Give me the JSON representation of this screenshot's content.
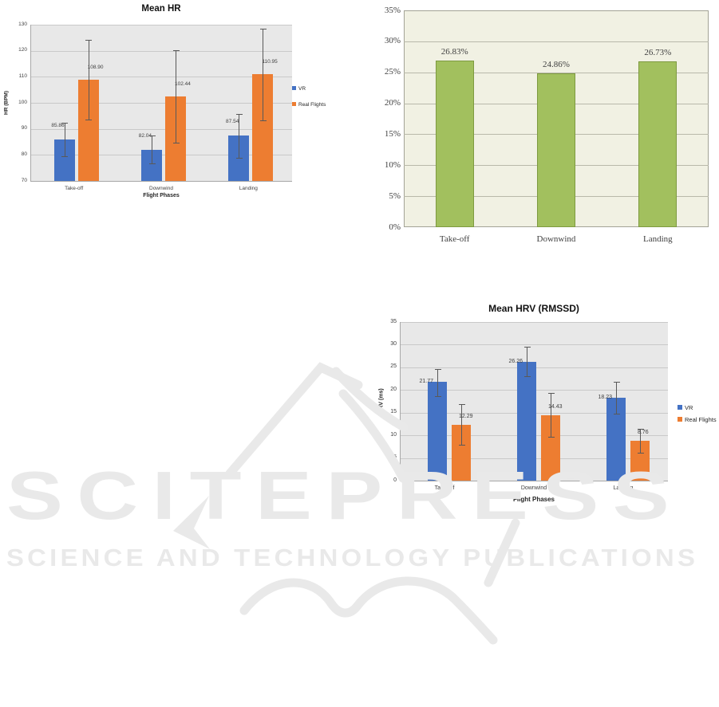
{
  "watermark": {
    "line1": "SCITEPRESS",
    "line2": "SCIENCE AND TECHNOLOGY PUBLICATIONS",
    "color": "#e9e9e9"
  },
  "colors": {
    "vr_blue": "#4472c4",
    "real_flights_orange": "#ed7d31",
    "green_bar": "#a2c05e",
    "green_bar_border": "#7e9a40",
    "plot_gray": "#e8e8e8",
    "plot_cream": "#f1f1e3",
    "error_bar": "#595959"
  },
  "chart_data": [
    {
      "id": "mean-hr",
      "type": "bar",
      "title": "Mean HR",
      "xlabel": "Flight Phases",
      "ylabel": "HR (BPM)",
      "categories": [
        "Take-off",
        "Downwind",
        "Landing"
      ],
      "series": [
        {
          "name": "VR",
          "color": "#4472c4",
          "values": [
            85.86,
            82.04,
            87.54
          ],
          "err_low": [
            79.5,
            76.7,
            79.0
          ],
          "err_high": [
            92.3,
            87.5,
            95.7
          ]
        },
        {
          "name": "Real Flights",
          "color": "#ed7d31",
          "values": [
            108.9,
            102.44,
            110.95
          ],
          "err_low": [
            93.5,
            84.7,
            93.4
          ],
          "err_high": [
            124.3,
            120.3,
            128.6
          ]
        }
      ],
      "ylim": [
        70,
        130
      ],
      "ytick_labels": [
        "70",
        "80",
        "90",
        "100",
        "110",
        "120",
        "130"
      ],
      "grid": true,
      "legend_position": "right",
      "value_format": "0.00"
    },
    {
      "id": "stress-percentage",
      "type": "bar",
      "title": "",
      "xlabel": "",
      "ylabel": "",
      "categories": [
        "Take-off",
        "Downwind",
        "Landing"
      ],
      "series": [
        {
          "name": "",
          "color": "#a2c05e",
          "border": "#7e9a40",
          "values": [
            26.83,
            24.86,
            26.73
          ]
        }
      ],
      "ylim": [
        0,
        35
      ],
      "ytick_labels": [
        "0%",
        "5%",
        "10%",
        "15%",
        "20%",
        "25%",
        "30%",
        "35%"
      ],
      "grid": true,
      "legend_position": "none",
      "value_format": "0.00%"
    },
    {
      "id": "mean-hrv",
      "type": "bar",
      "title": "Mean HRV (RMSSD)",
      "xlabel": "Flight Phases",
      "ylabel": "HRV (ms)",
      "categories": [
        "Take-off",
        "Downwind",
        "Landing"
      ],
      "series": [
        {
          "name": "VR",
          "color": "#4472c4",
          "values": [
            21.77,
            26.26,
            18.23
          ],
          "err_low": [
            18.7,
            23.1,
            14.7
          ],
          "err_high": [
            24.7,
            29.5,
            21.8
          ]
        },
        {
          "name": "Real Flights",
          "color": "#ed7d31",
          "values": [
            12.29,
            14.43,
            8.76
          ],
          "err_low": [
            7.9,
            9.7,
            6.2
          ],
          "err_high": [
            16.8,
            19.4,
            11.4
          ]
        }
      ],
      "ylim": [
        0,
        35
      ],
      "ytick_labels": [
        "0",
        "5",
        "10",
        "15",
        "20",
        "25",
        "30",
        "35"
      ],
      "grid": true,
      "legend_position": "right",
      "value_format": "0.00"
    }
  ]
}
